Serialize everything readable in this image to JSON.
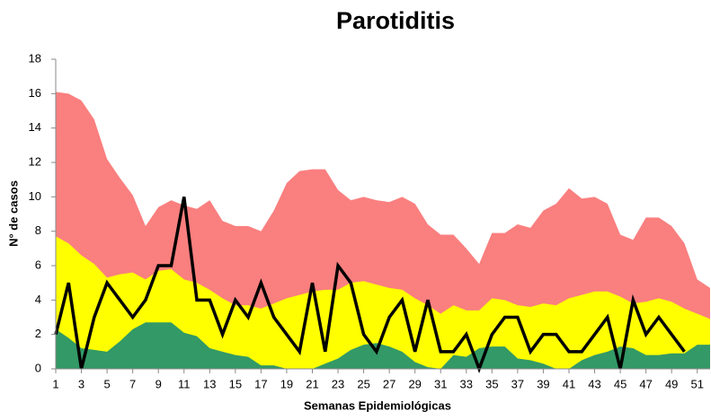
{
  "chart_data": {
    "type": "area-line",
    "title": "Parotiditis",
    "x_label": "Semanas Epidemiológicas",
    "y_label": "N° de casos",
    "x": [
      1,
      2,
      3,
      4,
      5,
      6,
      7,
      8,
      9,
      10,
      11,
      12,
      13,
      14,
      15,
      16,
      17,
      18,
      19,
      20,
      21,
      22,
      23,
      24,
      25,
      26,
      27,
      28,
      29,
      30,
      31,
      32,
      33,
      34,
      35,
      36,
      37,
      38,
      39,
      40,
      41,
      42,
      43,
      44,
      45,
      46,
      47,
      48,
      49,
      50,
      51,
      52
    ],
    "xlim": [
      1,
      52
    ],
    "xticks": [
      1,
      3,
      5,
      7,
      9,
      11,
      13,
      15,
      17,
      19,
      21,
      23,
      25,
      27,
      29,
      31,
      33,
      35,
      37,
      39,
      41,
      43,
      45,
      47,
      49,
      51
    ],
    "ylim": [
      0,
      18
    ],
    "yticks": [
      0,
      2,
      4,
      6,
      8,
      10,
      12,
      14,
      16,
      18
    ],
    "series": [
      {
        "kind": "area",
        "color": "#fa7f7f",
        "values": [
          16.1,
          16.0,
          15.6,
          14.5,
          12.2,
          11.1,
          10.1,
          8.3,
          9.4,
          9.8,
          9.5,
          9.3,
          9.8,
          8.6,
          8.3,
          8.3,
          8.0,
          9.2,
          10.8,
          11.5,
          11.6,
          11.6,
          10.4,
          9.8,
          10.0,
          9.8,
          9.7,
          10.0,
          9.6,
          8.4,
          7.8,
          7.8,
          7.0,
          6.1,
          7.9,
          7.9,
          8.4,
          8.2,
          9.2,
          9.6,
          10.5,
          9.9,
          10.0,
          9.6,
          7.8,
          7.5,
          8.8,
          8.8,
          8.3,
          7.3,
          5.2,
          4.7
        ]
      },
      {
        "kind": "area",
        "color": "#ffff00",
        "values": [
          7.7,
          7.3,
          6.6,
          6.1,
          5.3,
          5.5,
          5.6,
          5.2,
          5.7,
          5.8,
          5.2,
          5.0,
          4.6,
          4.1,
          3.7,
          3.7,
          3.5,
          3.8,
          4.1,
          4.3,
          4.5,
          4.6,
          4.6,
          5.0,
          5.1,
          4.9,
          4.7,
          4.6,
          4.1,
          3.7,
          3.2,
          3.7,
          3.4,
          3.4,
          4.1,
          4.0,
          3.7,
          3.6,
          3.8,
          3.7,
          4.1,
          4.3,
          4.5,
          4.5,
          4.2,
          3.8,
          3.9,
          4.1,
          3.9,
          3.5,
          3.2,
          2.9
        ]
      },
      {
        "kind": "area",
        "color": "#339966",
        "values": [
          2.3,
          1.8,
          1.2,
          1.1,
          1.0,
          1.6,
          2.3,
          2.7,
          2.7,
          2.7,
          2.1,
          1.9,
          1.2,
          1.0,
          0.8,
          0.7,
          0.2,
          0.2,
          0,
          0,
          0,
          0.3,
          0.6,
          1.1,
          1.4,
          1.5,
          1.3,
          1.0,
          0.4,
          0.1,
          0,
          0.8,
          0.7,
          1.2,
          1.3,
          1.3,
          0.6,
          0.5,
          0.3,
          0,
          0,
          0.5,
          0.8,
          1.0,
          1.3,
          1.2,
          0.8,
          0.8,
          0.9,
          0.9,
          1.4,
          1.4
        ]
      },
      {
        "kind": "line",
        "color": "#000000",
        "values": [
          2,
          5,
          0,
          3,
          5,
          4,
          3,
          4,
          6,
          6,
          10,
          4,
          4,
          2,
          4,
          3,
          5,
          3,
          2,
          1,
          5,
          1,
          6,
          5,
          2,
          1,
          3,
          4,
          1,
          4,
          1,
          1,
          2,
          0,
          2,
          3,
          3,
          1,
          2,
          2,
          1,
          1,
          2,
          3,
          0,
          4,
          2,
          3,
          2,
          1,
          null,
          null
        ]
      }
    ]
  }
}
